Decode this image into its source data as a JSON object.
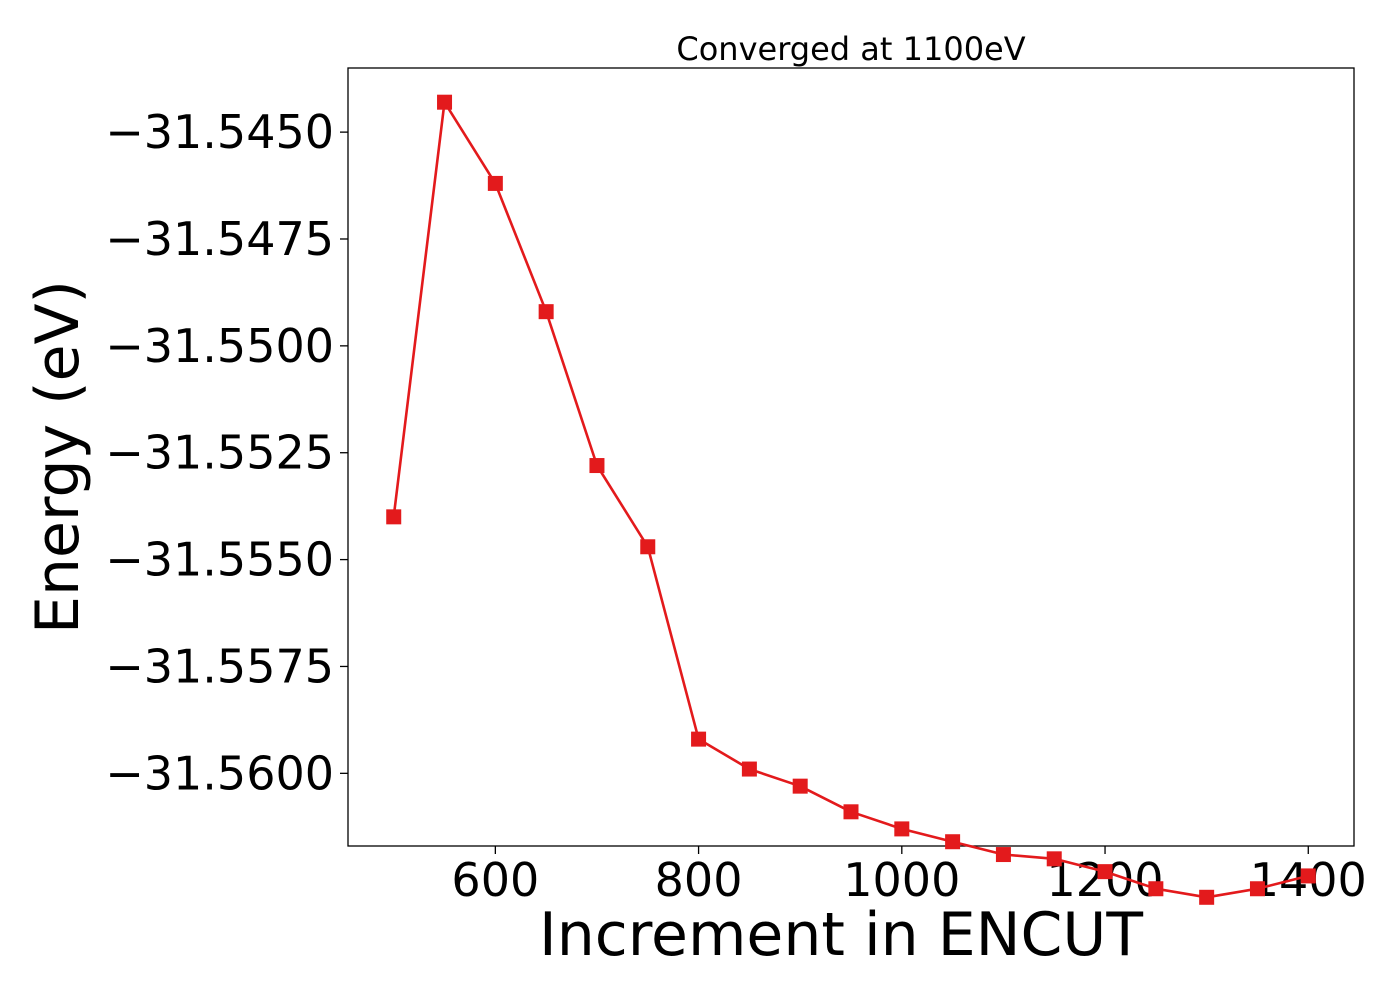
{
  "chart_data": {
    "type": "line",
    "title": "Converged at 1100eV",
    "xlabel": "Increment in ENCUT",
    "ylabel": "Energy (eV)",
    "x": [
      500,
      550,
      600,
      650,
      700,
      750,
      800,
      850,
      900,
      950,
      1000,
      1050,
      1100,
      1150,
      1200,
      1250,
      1300,
      1350,
      1400
    ],
    "series": [
      {
        "name": "",
        "color": "#e31a1c",
        "marker": "square",
        "values": [
          -31.554,
          -31.5443,
          -31.5462,
          -31.5492,
          -31.5528,
          -31.5547,
          -31.5592,
          -31.5599,
          -31.5603,
          -31.5609,
          -31.5613,
          -31.5616,
          -31.5619,
          -31.562,
          -31.5623,
          -31.5627,
          -31.5629,
          -31.5627,
          -31.5624
        ]
      }
    ],
    "xlim": [
      455,
      1445
    ],
    "ylim": [
      -31.5617,
      -31.5435
    ],
    "xticks": [
      600,
      800,
      1000,
      1200,
      1400
    ],
    "xtick_labels": [
      "600",
      "800",
      "1000",
      "1200",
      "1400"
    ],
    "yticks": [
      -31.545,
      -31.5475,
      -31.55,
      -31.5525,
      -31.555,
      -31.5575,
      -31.56
    ],
    "ytick_labels": [
      "−31.5450",
      "−31.5475",
      "−31.5500",
      "−31.5525",
      "−31.5550",
      "−31.5575",
      "−31.5600"
    ],
    "grid": false,
    "legend": "none"
  }
}
